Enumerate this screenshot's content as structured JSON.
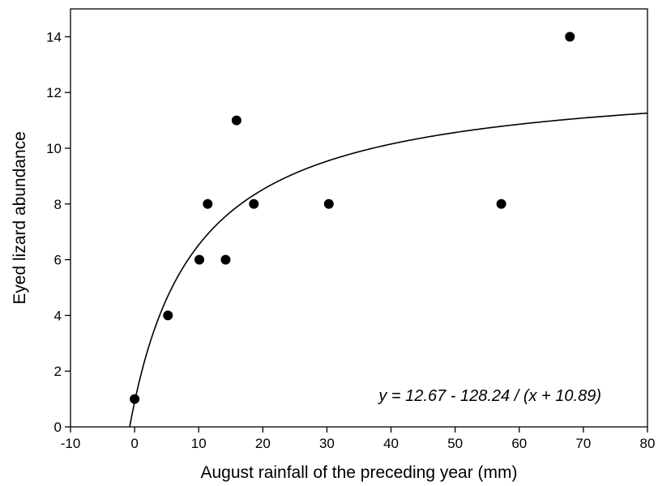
{
  "chart_data": {
    "type": "scatter",
    "title": "",
    "xlabel": "August rainfall of the preceding year (mm)",
    "ylabel": "Eyed lizard abundance",
    "xlim": [
      -10,
      80
    ],
    "ylim": [
      0,
      15
    ],
    "x_ticks": [
      -10,
      0,
      10,
      20,
      30,
      40,
      50,
      60,
      70,
      80
    ],
    "y_ticks": [
      0,
      2,
      4,
      6,
      8,
      10,
      12,
      14
    ],
    "grid": false,
    "points": [
      {
        "x": 0,
        "y": 1
      },
      {
        "x": 5.2,
        "y": 4
      },
      {
        "x": 10.1,
        "y": 6
      },
      {
        "x": 11.4,
        "y": 8
      },
      {
        "x": 14.2,
        "y": 6
      },
      {
        "x": 15.9,
        "y": 11
      },
      {
        "x": 18.6,
        "y": 8
      },
      {
        "x": 30.3,
        "y": 8
      },
      {
        "x": 57.2,
        "y": 8
      },
      {
        "x": 67.9,
        "y": 14
      }
    ],
    "fit": {
      "a": 12.67,
      "b": 128.24,
      "c": 10.89
    },
    "equation": "y = 12.67 - 128.24 / (x + 10.89)"
  }
}
